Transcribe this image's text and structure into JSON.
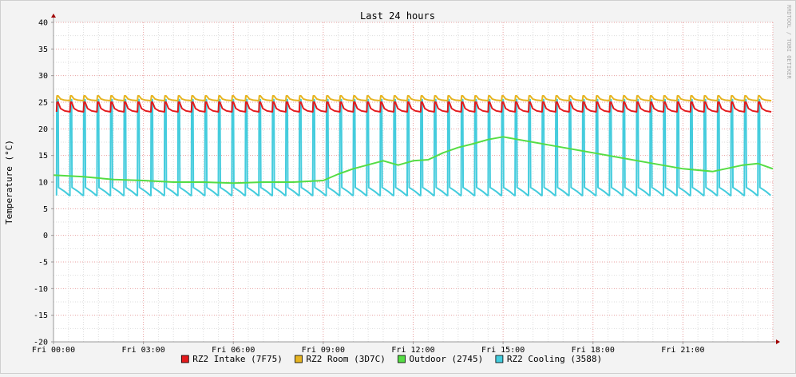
{
  "chart_data": {
    "type": "line",
    "title": "Last 24 hours",
    "ylabel": "Temperature (°C)",
    "watermark": "RRDTOOL / TOBI OETIKER",
    "ylim": [
      -20,
      40
    ],
    "y_ticks": [
      40,
      35,
      30,
      25,
      20,
      15,
      10,
      5,
      0,
      -5,
      -10,
      -15,
      -20
    ],
    "x_range_hours": [
      0,
      24
    ],
    "x_ticks": [
      {
        "hour": 0,
        "label": "Fri 00:00"
      },
      {
        "hour": 3,
        "label": "Fri 03:00"
      },
      {
        "hour": 6,
        "label": "Fri 06:00"
      },
      {
        "hour": 9,
        "label": "Fri 09:00"
      },
      {
        "hour": 12,
        "label": "Fri 12:00"
      },
      {
        "hour": 15,
        "label": "Fri 15:00"
      },
      {
        "hour": 18,
        "label": "Fri 18:00"
      },
      {
        "hour": 21,
        "label": "Fri 21:00"
      }
    ],
    "grid": true,
    "legend_position": "bottom",
    "series": [
      {
        "name": "RZ2 Intake (7F75)",
        "color": "#e41a1c",
        "kind": "sawtooth",
        "cycles_start_hours": [
          0.1,
          0.55,
          1.0,
          1.45,
          1.9,
          2.35,
          2.8,
          3.25,
          3.7,
          4.15,
          4.6,
          5.05,
          5.5,
          5.95,
          6.4,
          6.85,
          7.3,
          7.75,
          8.2,
          8.65,
          9.1,
          9.55,
          10.0,
          10.45,
          10.9,
          11.35,
          11.8,
          12.25,
          12.7,
          13.15,
          13.6,
          14.05,
          14.5,
          14.95,
          15.4,
          15.85,
          16.3,
          16.75,
          17.2,
          17.65,
          18.1,
          18.55,
          19.0,
          19.45,
          19.9,
          20.35,
          20.8,
          21.25,
          21.7,
          22.15,
          22.6,
          23.05,
          23.5
        ],
        "peak": 25.0,
        "base": 23.2
      },
      {
        "name": "RZ2 Room (3D7C)",
        "color": "#e6b422",
        "kind": "sawtooth",
        "cycles_start_hours": [
          0.1,
          0.55,
          1.0,
          1.45,
          1.9,
          2.35,
          2.8,
          3.25,
          3.7,
          4.15,
          4.6,
          5.05,
          5.5,
          5.95,
          6.4,
          6.85,
          7.3,
          7.75,
          8.2,
          8.65,
          9.1,
          9.55,
          10.0,
          10.45,
          10.9,
          11.35,
          11.8,
          12.25,
          12.7,
          13.15,
          13.6,
          14.05,
          14.5,
          14.95,
          15.4,
          15.85,
          16.3,
          16.75,
          17.2,
          17.65,
          18.1,
          18.55,
          19.0,
          19.45,
          19.9,
          20.35,
          20.8,
          21.25,
          21.7,
          22.15,
          22.6,
          23.05,
          23.5
        ],
        "peak": 26.2,
        "base": 25.3
      },
      {
        "name": "Outdoor (2745)",
        "color": "#55dd44",
        "kind": "line",
        "x": [
          0,
          1,
          2,
          3,
          4,
          5,
          6,
          7,
          8,
          9,
          9.5,
          10,
          11,
          11.5,
          12,
          12.5,
          13,
          13.5,
          14,
          14.5,
          15,
          15.5,
          16,
          16.5,
          17,
          17.5,
          18,
          19,
          20,
          21,
          22,
          23,
          23.5,
          24
        ],
        "y": [
          11.3,
          11.0,
          10.5,
          10.3,
          10.0,
          10.0,
          9.8,
          10.0,
          10.0,
          10.3,
          11.5,
          12.5,
          14.0,
          13.2,
          14.0,
          14.2,
          15.5,
          16.5,
          17.2,
          18.0,
          18.5,
          18.0,
          17.5,
          17.0,
          16.5,
          16.0,
          15.5,
          14.5,
          13.5,
          12.5,
          12.0,
          13.2,
          13.5,
          12.5
        ]
      },
      {
        "name": "RZ2 Cooling (3588)",
        "color": "#44ccdd",
        "kind": "pulse",
        "cycles_start_hours": [
          0.1,
          0.55,
          1.0,
          1.45,
          1.9,
          2.35,
          2.8,
          3.25,
          3.7,
          4.15,
          4.6,
          5.05,
          5.5,
          5.95,
          6.4,
          6.85,
          7.3,
          7.75,
          8.2,
          8.65,
          9.1,
          9.55,
          10.0,
          10.45,
          10.9,
          11.35,
          11.8,
          12.25,
          12.7,
          13.15,
          13.6,
          14.05,
          14.5,
          14.95,
          15.4,
          15.85,
          16.3,
          16.75,
          17.2,
          17.65,
          18.1,
          18.55,
          19.0,
          19.45,
          19.9,
          20.35,
          20.8,
          21.25,
          21.7,
          22.15,
          22.6,
          23.05,
          23.5
        ],
        "high": 25.5,
        "low_start": 9.0,
        "low_end": 7.5
      }
    ]
  }
}
